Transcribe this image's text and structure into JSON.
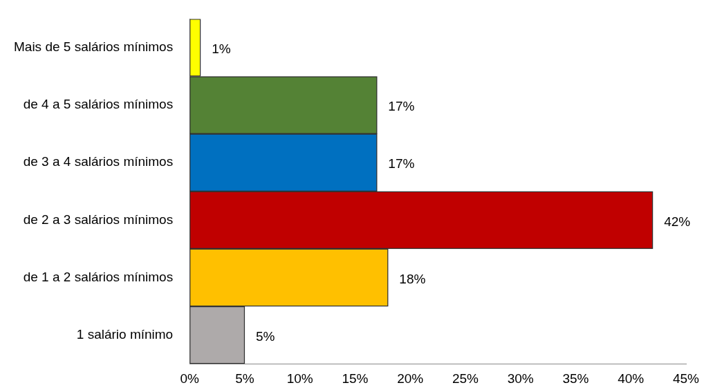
{
  "chart_data": {
    "type": "bar",
    "orientation": "horizontal",
    "categories": [
      "Mais de 5 salários mínimos",
      "de 4 a 5 salários mínimos",
      "de 3 a 4 salários mínimos",
      "de 2 a 3 salários mínimos",
      "de 1 a 2 salários mínimos",
      "1 salário mínimo"
    ],
    "values": [
      1,
      17,
      17,
      42,
      18,
      5
    ],
    "colors": [
      "#ffff00",
      "#548235",
      "#0070c0",
      "#c00000",
      "#ffc000",
      "#aeaaaa"
    ],
    "value_labels": [
      "1%",
      "17%",
      "17%",
      "42%",
      "18%",
      "5%"
    ],
    "xlim": [
      0,
      45
    ],
    "xticks": [
      {
        "value": 0,
        "label": "0%"
      },
      {
        "value": 5,
        "label": "5%"
      },
      {
        "value": 10,
        "label": "10%"
      },
      {
        "value": 15,
        "label": "15%"
      },
      {
        "value": 20,
        "label": "20%"
      },
      {
        "value": 25,
        "label": "25%"
      },
      {
        "value": 30,
        "label": "30%"
      },
      {
        "value": 35,
        "label": "35%"
      },
      {
        "value": 40,
        "label": "40%"
      },
      {
        "value": 45,
        "label": "45%"
      }
    ],
    "grid": false,
    "legend": false
  }
}
